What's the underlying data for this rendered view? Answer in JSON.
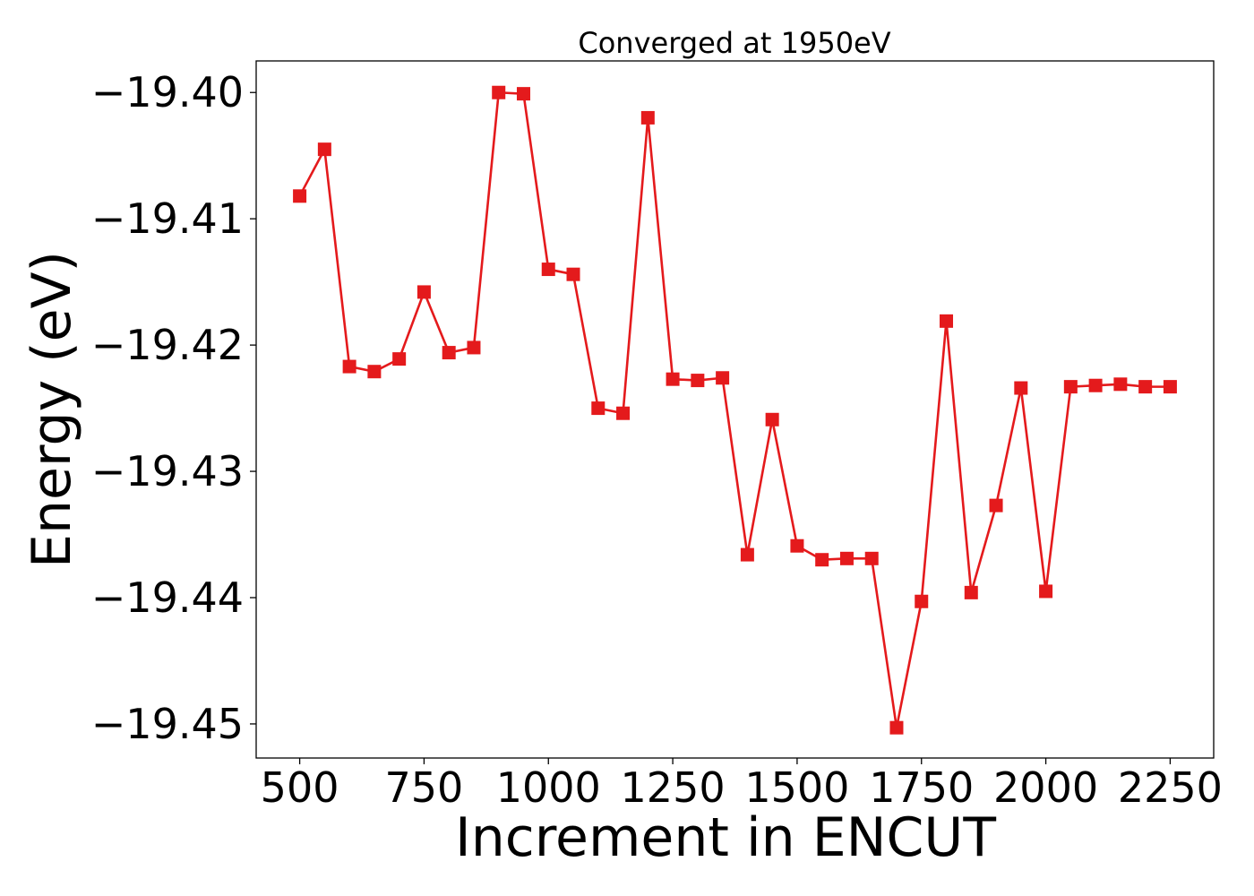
{
  "chart_data": {
    "type": "line",
    "title": "Converged at 1950eV",
    "xlabel": "Increment in ENCUT",
    "ylabel": "Energy (eV)",
    "xlim": [
      412.5,
      2337.5
    ],
    "ylim": [
      -19.4527,
      -19.3975
    ],
    "xticks": [
      500,
      750,
      1000,
      1250,
      1500,
      1750,
      2000,
      2250
    ],
    "xtick_labels": [
      "500",
      "750",
      "1000",
      "1250",
      "1500",
      "1750",
      "2000",
      "2250"
    ],
    "yticks": [
      -19.4,
      -19.41,
      -19.42,
      -19.43,
      -19.44,
      -19.45
    ],
    "ytick_labels": [
      "−19.40",
      "−19.41",
      "−19.42",
      "−19.43",
      "−19.44",
      "−19.45"
    ],
    "grid": false,
    "marker": "square",
    "color": "#e41a1c",
    "x": [
      500,
      550,
      600,
      650,
      700,
      750,
      800,
      850,
      900,
      950,
      1000,
      1050,
      1100,
      1150,
      1200,
      1250,
      1300,
      1350,
      1400,
      1450,
      1500,
      1550,
      1600,
      1650,
      1700,
      1750,
      1800,
      1850,
      1900,
      1950,
      2000,
      2050,
      2100,
      2150,
      2200,
      2250
    ],
    "y": [
      -19.4082,
      -19.4045,
      -19.4217,
      -19.4221,
      -19.4211,
      -19.4158,
      -19.4206,
      -19.4202,
      -19.4,
      -19.4001,
      -19.414,
      -19.4144,
      -19.425,
      -19.4254,
      -19.402,
      -19.4227,
      -19.4228,
      -19.4226,
      -19.4366,
      -19.4259,
      -19.4359,
      -19.437,
      -19.4369,
      -19.4369,
      -19.4503,
      -19.4403,
      -19.4181,
      -19.4396,
      -19.4327,
      -19.4234,
      -19.4395,
      -19.4233,
      -19.4232,
      -19.4231,
      -19.4233,
      -19.4233
    ]
  }
}
